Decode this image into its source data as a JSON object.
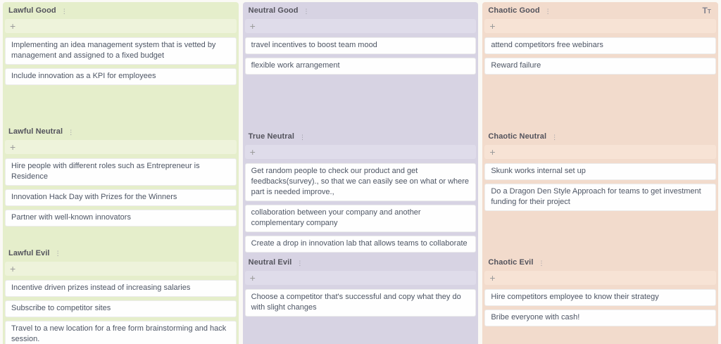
{
  "board": {
    "icons": {
      "add": "+",
      "menu": "⋮",
      "text_format_large": "T",
      "text_format_small": "T"
    },
    "columns": [
      {
        "theme": "green",
        "bg": "#e5eecb",
        "add_bg": "#eef3db",
        "sections": [
          {
            "title": "Lawful Good",
            "cards": [
              "Implementing an idea management system that is vetted by management and assigned to a fixed budget",
              "Include innovation as a KPI for employees"
            ]
          },
          {
            "title": "Lawful Neutral",
            "cards": [
              "Hire people with different roles such as Entrepreneur is Residence",
              "Innovation Hack Day with Prizes for the Winners",
              "Partner with well-known innovators"
            ]
          },
          {
            "title": "Lawful Evil",
            "cards": [
              "Incentive driven prizes instead of increasing salaries",
              "Subscribe to competitor sites",
              "Travel to a new location for a free form brainstorming and hack session."
            ]
          }
        ]
      },
      {
        "theme": "purple",
        "bg": "#d7d3e3",
        "add_bg": "#dfdcea",
        "sections": [
          {
            "title": "Neutral Good",
            "cards": [
              "travel incentives to boost team mood",
              "flexible work arrangement"
            ]
          },
          {
            "title": "True Neutral",
            "cards": [
              "Get random people to check our product and get feedbacks(survey)., so that we can easily see on what or where part is needed improve.,",
              "collaboration between your company and another complementary company",
              "Create a drop in innovation lab that allows teams to collaborate"
            ]
          },
          {
            "title": "Neutral Evil",
            "cards": [
              "Choose a competitor that's successful and copy what they do with slight changes"
            ]
          }
        ]
      },
      {
        "theme": "salmon",
        "bg": "#f2dbcc",
        "add_bg": "#f7e3d5",
        "sections": [
          {
            "title": "Chaotic Good",
            "has_text_format_icon": true,
            "cards": [
              "attend competitors free webinars",
              "Reward failure"
            ]
          },
          {
            "title": "Chaotic Neutral",
            "cards": [
              "Skunk works internal set up",
              "Do a Dragon Den Style Approach for teams to get investment funding for their project"
            ]
          },
          {
            "title": "Chaotic Evil",
            "cards": [
              "Hire competitors employee to know their strategy",
              "Bribe everyone with cash!"
            ]
          }
        ]
      }
    ]
  }
}
